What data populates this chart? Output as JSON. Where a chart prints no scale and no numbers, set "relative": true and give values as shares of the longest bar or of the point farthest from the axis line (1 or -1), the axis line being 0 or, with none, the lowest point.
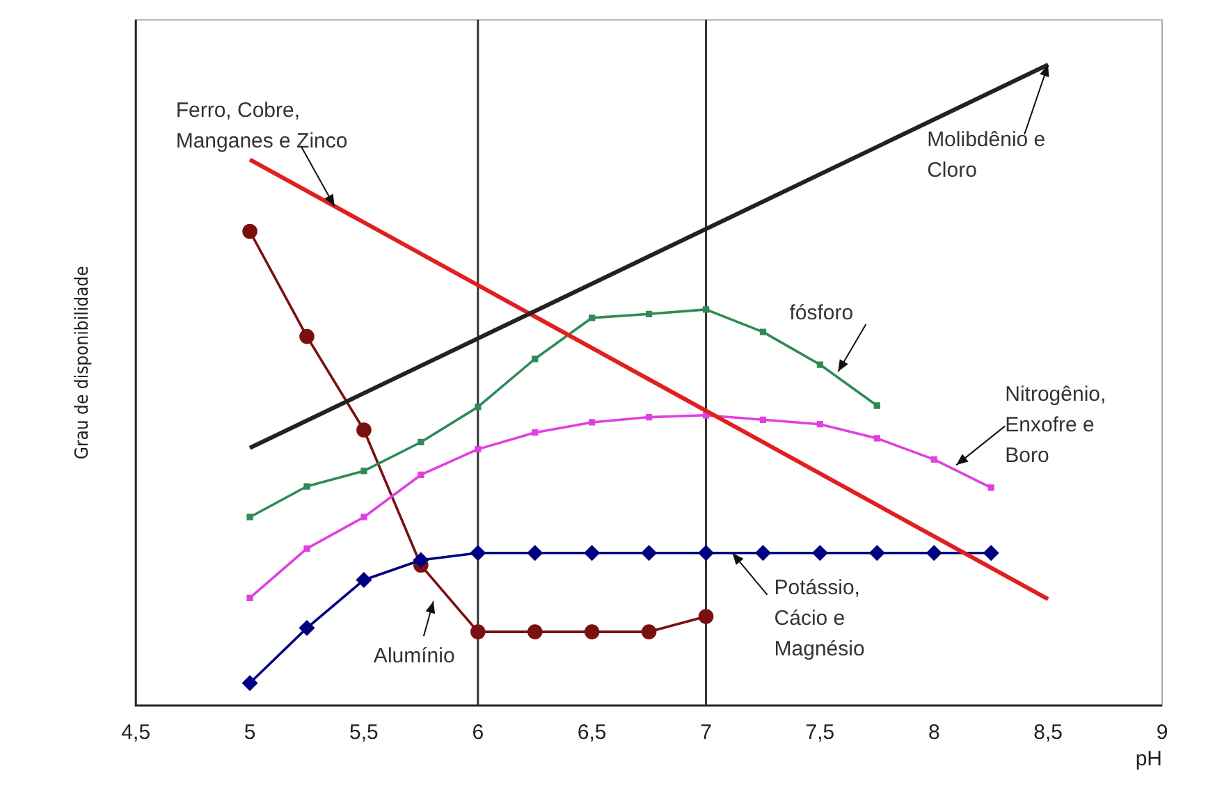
{
  "chart_data": {
    "type": "line",
    "relative": true,
    "xlabel": "pH",
    "ylabel": "Grau de disponibilidade",
    "xlim": [
      4.5,
      9
    ],
    "xticks": [
      {
        "value": 4.5,
        "label": "4,5"
      },
      5,
      {
        "value": 5.5,
        "label": "5,5"
      },
      6,
      {
        "value": 6.5,
        "label": "6,5"
      },
      7,
      {
        "value": 7.5,
        "label": "7,5"
      },
      8,
      {
        "value": 8.5,
        "label": "8,5"
      },
      9
    ],
    "tick_labels": "x",
    "grid": false,
    "legend": false,
    "ref_lines": [
      {
        "axis": "x",
        "value": 6,
        "color": "#333333"
      },
      {
        "axis": "x",
        "value": 7,
        "color": "#333333"
      }
    ],
    "series": [
      {
        "name": "Molibdênio e Cloro",
        "color": "#222222",
        "marker": "none",
        "x": [
          5,
          8.5
        ],
        "values": [
          0.402,
          1
        ]
      },
      {
        "name": "Ferro, Cobre, Manganes e Zinco",
        "color": "#e02020",
        "marker": "none",
        "x": [
          5,
          8.5
        ],
        "values": [
          0.852,
          0.166
        ]
      },
      {
        "name": "fósforo",
        "color": "#2e8b57",
        "marker": "square",
        "x": [
          5,
          5.25,
          5.5,
          5.75,
          6,
          6.25,
          6.5,
          6.75,
          7,
          7.25,
          7.5,
          7.75
        ],
        "values": [
          0.294,
          0.342,
          0.366,
          0.411,
          0.466,
          0.541,
          0.605,
          0.611,
          0.618,
          0.583,
          0.532,
          0.468
        ]
      },
      {
        "name": "Nitrogênio, Enxofre e Boro",
        "color": "#e040e0",
        "marker": "square",
        "x": [
          5,
          5.25,
          5.5,
          5.75,
          6,
          6.25,
          6.5,
          6.75,
          7,
          7.25,
          7.5,
          7.75,
          8,
          8.25
        ],
        "values": [
          0.168,
          0.245,
          0.294,
          0.36,
          0.4,
          0.426,
          0.442,
          0.45,
          0.453,
          0.446,
          0.439,
          0.417,
          0.384,
          0.34
        ]
      },
      {
        "name": "Potássio, Cácio e Magnésio",
        "color": "#000080",
        "marker": "diamond",
        "x": [
          5,
          5.25,
          5.5,
          5.75,
          6,
          6.25,
          6.5,
          6.75,
          7,
          7.25,
          7.5,
          7.75,
          8,
          8.25
        ],
        "values": [
          0.035,
          0.121,
          0.196,
          0.227,
          0.238,
          0.238,
          0.238,
          0.238,
          0.238,
          0.238,
          0.238,
          0.238,
          0.238,
          0.238
        ]
      },
      {
        "name": "Alumínio",
        "color": "#7a1010",
        "marker": "circle",
        "x": [
          5,
          5.25,
          5.5,
          5.75,
          6,
          6.25,
          6.5,
          6.75,
          7
        ],
        "values": [
          0.74,
          0.576,
          0.43,
          0.219,
          0.115,
          0.115,
          0.115,
          0.115,
          0.139
        ]
      }
    ]
  }
}
